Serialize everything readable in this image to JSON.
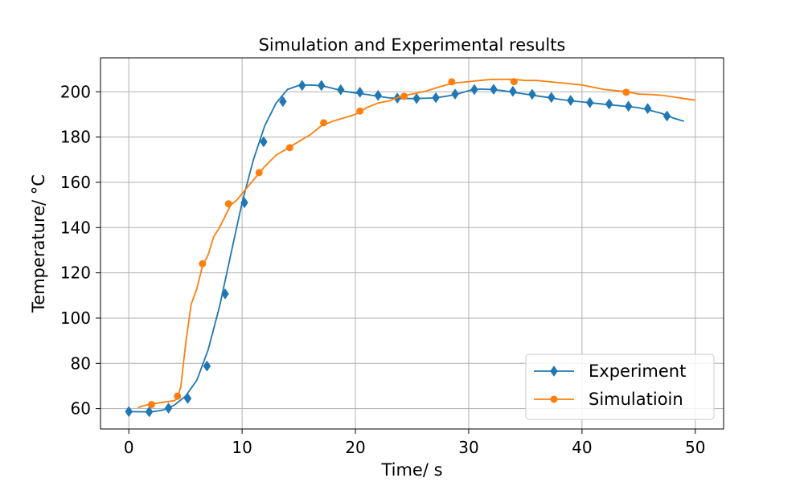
{
  "chart_data": {
    "type": "line",
    "title": "Simulation and Experimental results",
    "xlabel": "Time/ s",
    "ylabel": "Temperature/ °C",
    "xlim": [
      -2.5,
      52.5
    ],
    "ylim": [
      51,
      215
    ],
    "xticks": [
      0,
      10,
      20,
      30,
      40,
      50
    ],
    "yticks": [
      60,
      80,
      100,
      120,
      140,
      160,
      180,
      200
    ],
    "grid": true,
    "legend_position": "lower-right",
    "series": [
      {
        "name": "Experiment",
        "color": "#1f77b4",
        "marker": "diamond",
        "x": [
          0,
          1,
          2,
          3,
          4,
          5,
          6,
          7,
          8,
          9,
          10,
          11,
          12,
          13,
          14,
          15,
          16,
          17,
          18,
          19,
          20,
          21,
          22,
          23,
          24,
          25,
          26,
          27,
          28,
          29,
          30,
          31,
          32,
          33,
          34,
          35,
          36,
          37,
          38,
          39,
          40,
          41,
          42,
          43,
          44,
          45,
          46,
          47,
          48,
          49
        ],
        "y": [
          58.7,
          58.6,
          58.6,
          59.3,
          61.5,
          65.5,
          72.5,
          86.0,
          105.0,
          128.0,
          151.0,
          170.0,
          185.0,
          195.0,
          201.0,
          202.8,
          203.0,
          202.7,
          201.5,
          200.2,
          199.5,
          198.8,
          198.0,
          197.3,
          197.0,
          197.0,
          197.1,
          197.3,
          198.0,
          199.0,
          200.5,
          201.2,
          201.0,
          200.5,
          199.7,
          199.0,
          198.2,
          197.5,
          196.7,
          196.0,
          195.5,
          195.0,
          194.5,
          194.0,
          193.5,
          193.0,
          191.8,
          190.5,
          188.5,
          187.0
        ],
        "markers_x": [
          0,
          1.8,
          3.5,
          5.2,
          6.9,
          8.5,
          10.2,
          11.9,
          13.6,
          15.3,
          17.0,
          18.7,
          20.4,
          22.0,
          23.7,
          25.4,
          27.1,
          28.8,
          30.5,
          32.2,
          33.9,
          35.6,
          37.3,
          39.0,
          40.7,
          42.4,
          44.1,
          45.8,
          47.5
        ],
        "markers_y": [
          58.7,
          58.6,
          60.2,
          64.5,
          78.8,
          110.7,
          151.0,
          177.9,
          195.7,
          202.8,
          202.8,
          200.9,
          199.8,
          198.4,
          197.2,
          197.0,
          197.4,
          199.0,
          201.0,
          201.1,
          200.2,
          198.9,
          197.5,
          196.2,
          195.2,
          194.6,
          193.6,
          192.6,
          189.3
        ]
      },
      {
        "name": "Simulatioin",
        "color": "#ff7f0e",
        "marker": "circle",
        "x": [
          0.8,
          1.5,
          2.0,
          3.0,
          4.0,
          4.3,
          4.6,
          5.0,
          5.5,
          6.0,
          6.5,
          7.0,
          7.5,
          8.0,
          8.5,
          9.0,
          9.5,
          10.0,
          10.5,
          11.0,
          11.5,
          12.0,
          13.0,
          14.0,
          15.0,
          16.0,
          17.0,
          18.0,
          19.0,
          20.0,
          21.0,
          22.0,
          23.0,
          24.0,
          25.0,
          26.0,
          27.0,
          28.0,
          29.0,
          30.0,
          31.0,
          32.0,
          33.0,
          34.0,
          35.0,
          36.0,
          37.0,
          38.0,
          39.0,
          40.0,
          41.0,
          42.0,
          43.0,
          44.0,
          45.0,
          46.0,
          47.0,
          48.0,
          49.0,
          50.0
        ],
        "y": [
          60.5,
          61.5,
          62.0,
          62.8,
          63.5,
          64.5,
          70.0,
          88.0,
          106.0,
          113.0,
          123.0,
          128.0,
          136.0,
          140.0,
          145.0,
          150.0,
          152.0,
          155.0,
          158.0,
          161.0,
          164.0,
          167.0,
          172.0,
          175.0,
          178.0,
          181.0,
          185.0,
          187.0,
          188.5,
          190.0,
          193.0,
          195.0,
          196.0,
          198.0,
          199.0,
          200.0,
          201.5,
          203.0,
          204.0,
          204.5,
          205.0,
          205.5,
          205.5,
          205.5,
          205.0,
          205.0,
          204.5,
          204.0,
          203.5,
          203.0,
          202.0,
          201.0,
          200.5,
          200.0,
          199.0,
          198.8,
          198.5,
          197.8,
          197.0,
          196.3
        ],
        "markers_x": [
          2.0,
          4.3,
          6.5,
          8.8,
          11.5,
          14.2,
          17.2,
          20.4,
          24.3,
          28.5,
          34.0,
          43.9
        ],
        "markers_y": [
          61.8,
          65.5,
          124.0,
          150.5,
          164.3,
          175.3,
          186.3,
          191.5,
          198.0,
          204.4,
          204.5,
          199.8
        ]
      }
    ]
  }
}
